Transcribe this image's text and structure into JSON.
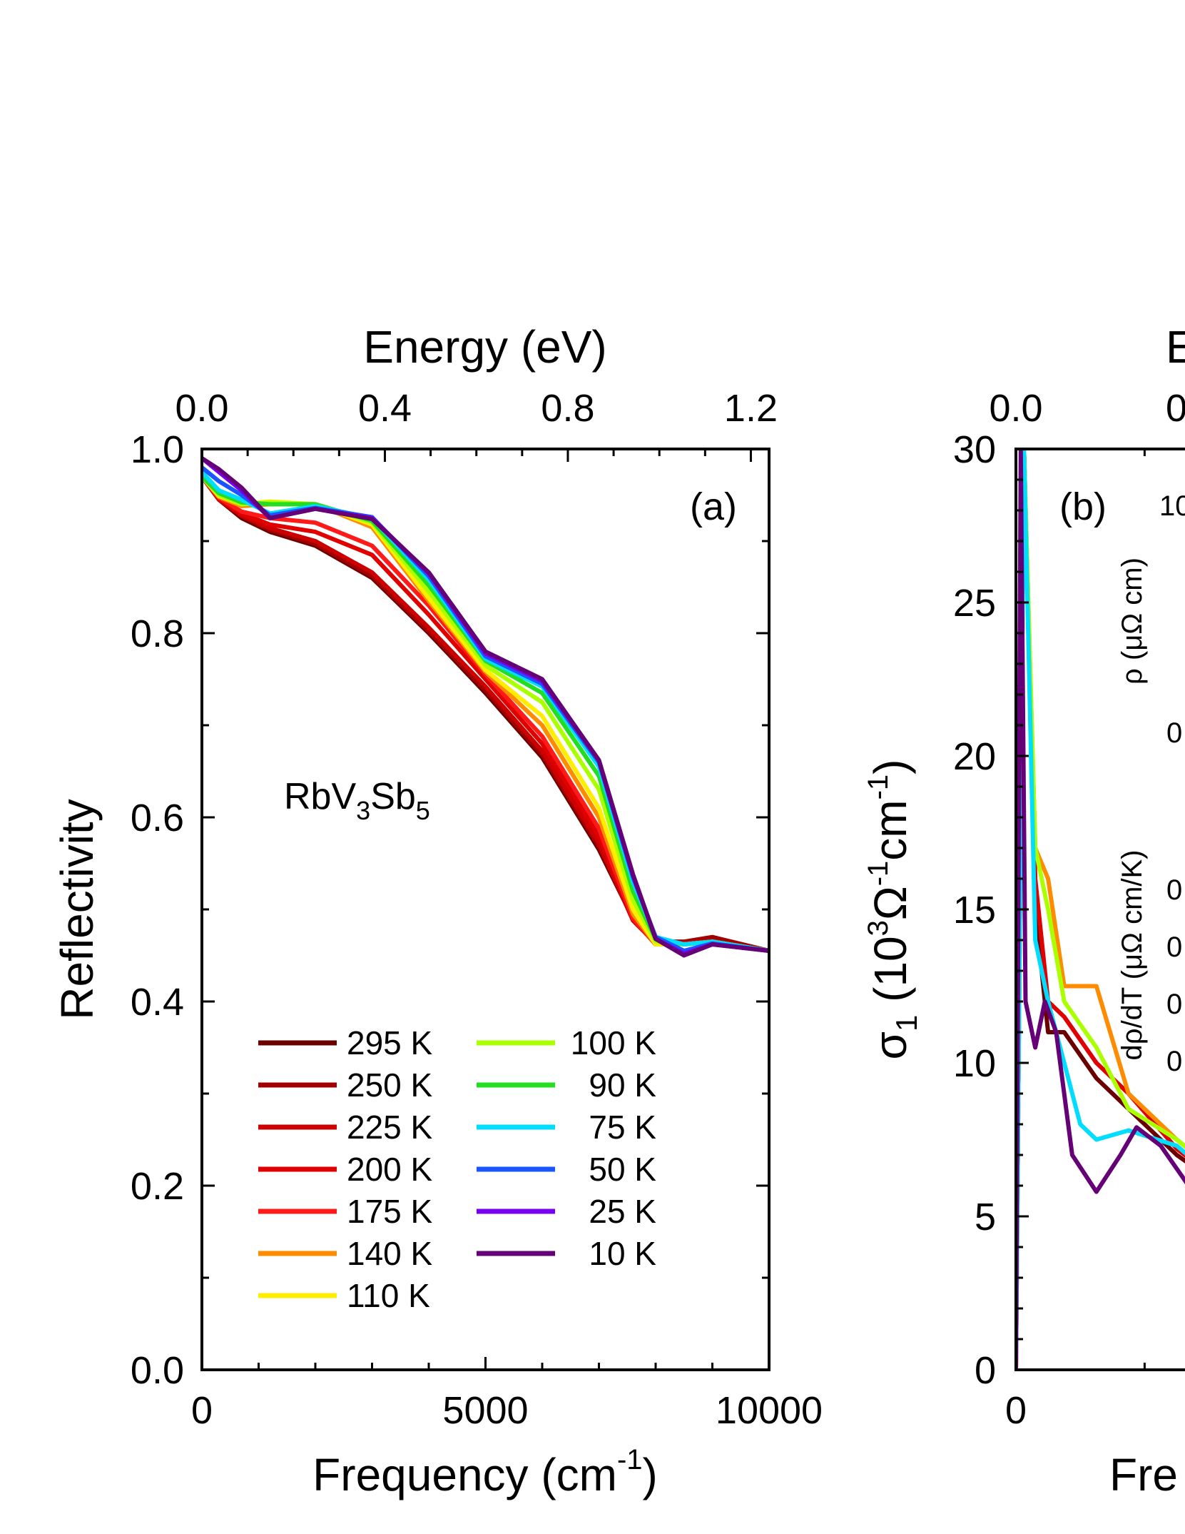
{
  "chart_data": [
    {
      "panel": "(a)",
      "type": "line",
      "xlabel": "Frequency (cm",
      "xlabel_sup": "-1",
      "xlabel_end": ")",
      "ylabel": "Reflectivity",
      "top_xlabel": "Energy (eV)",
      "xlim": [
        0,
        10000
      ],
      "ylim": [
        0.0,
        1.0
      ],
      "xticks": [
        "0",
        "5000",
        "10000"
      ],
      "yticks": [
        "0.0",
        "0.2",
        "0.4",
        "0.6",
        "0.8",
        "1.0"
      ],
      "top_ticks": [
        "0.0",
        "0.4",
        "0.8",
        "1.2"
      ],
      "annotation": {
        "text": "RbV",
        "sub1": "3",
        "mid": "Sb",
        "sub2": "5"
      },
      "legend_placement": "bottom-center",
      "series": [
        {
          "name": "295 K",
          "color": "#6b0000",
          "x": [
            0,
            300,
            700,
            1200,
            2000,
            3000,
            4000,
            5000,
            6000,
            7000,
            7600,
            8000,
            8500,
            9000,
            10000
          ],
          "y": [
            0.97,
            0.945,
            0.925,
            0.91,
            0.895,
            0.86,
            0.8,
            0.735,
            0.665,
            0.565,
            0.49,
            0.465,
            0.465,
            0.468,
            0.455
          ]
        },
        {
          "name": "250 K",
          "color": "#a00000",
          "x": [
            0,
            300,
            700,
            1200,
            2000,
            3000,
            4000,
            5000,
            6000,
            7000,
            7600,
            8000,
            8500,
            9000,
            10000
          ],
          "y": [
            0.97,
            0.945,
            0.927,
            0.912,
            0.897,
            0.862,
            0.802,
            0.738,
            0.668,
            0.568,
            0.49,
            0.465,
            0.465,
            0.47,
            0.455
          ]
        },
        {
          "name": "225 K",
          "color": "#cc0000",
          "x": [
            0,
            300,
            700,
            1200,
            2000,
            3000,
            4000,
            5000,
            6000,
            7000,
            7600,
            8000,
            8500,
            9000,
            10000
          ],
          "y": [
            0.97,
            0.945,
            0.928,
            0.914,
            0.9,
            0.866,
            0.806,
            0.742,
            0.672,
            0.572,
            0.488,
            0.463,
            0.463,
            0.466,
            0.455
          ]
        },
        {
          "name": "200 K",
          "color": "#e00000",
          "x": [
            0,
            300,
            700,
            1200,
            2000,
            3000,
            4000,
            5000,
            6000,
            7000,
            7600,
            8000,
            8500,
            9000,
            10000
          ],
          "y": [
            0.97,
            0.946,
            0.93,
            0.918,
            0.91,
            0.885,
            0.82,
            0.75,
            0.68,
            0.58,
            0.49,
            0.462,
            0.462,
            0.465,
            0.455
          ]
        },
        {
          "name": "175 K",
          "color": "#ff1a1a",
          "x": [
            0,
            300,
            700,
            1200,
            2000,
            3000,
            4000,
            5000,
            6000,
            7000,
            7600,
            8000,
            8500,
            9000,
            10000
          ],
          "y": [
            0.97,
            0.947,
            0.932,
            0.925,
            0.92,
            0.895,
            0.83,
            0.755,
            0.688,
            0.588,
            0.49,
            0.462,
            0.462,
            0.465,
            0.455
          ]
        },
        {
          "name": "140 K",
          "color": "#ff8c00",
          "x": [
            0,
            300,
            700,
            1200,
            2000,
            3000,
            4000,
            5000,
            6000,
            7000,
            7600,
            8000,
            8500,
            9000,
            10000
          ],
          "y": [
            0.97,
            0.948,
            0.938,
            0.94,
            0.94,
            0.915,
            0.835,
            0.758,
            0.7,
            0.6,
            0.495,
            0.462,
            0.462,
            0.465,
            0.455
          ]
        },
        {
          "name": "110 K",
          "color": "#ffee00",
          "x": [
            0,
            300,
            700,
            1200,
            2000,
            3000,
            4000,
            5000,
            6000,
            7000,
            7600,
            8000,
            8500,
            9000,
            10000
          ],
          "y": [
            0.97,
            0.949,
            0.94,
            0.943,
            0.94,
            0.918,
            0.838,
            0.76,
            0.71,
            0.61,
            0.5,
            0.462,
            0.462,
            0.465,
            0.455
          ]
        },
        {
          "name": "100 K",
          "color": "#aaff00",
          "x": [
            0,
            300,
            700,
            1200,
            2000,
            3000,
            4000,
            5000,
            6000,
            7000,
            7600,
            8000,
            8500,
            9000,
            10000
          ],
          "y": [
            0.97,
            0.95,
            0.94,
            0.942,
            0.94,
            0.92,
            0.845,
            0.765,
            0.725,
            0.63,
            0.51,
            0.465,
            0.462,
            0.465,
            0.455
          ]
        },
        {
          "name": "90 K",
          "color": "#22dd22",
          "x": [
            0,
            300,
            700,
            1200,
            2000,
            3000,
            4000,
            5000,
            6000,
            7000,
            7600,
            8000,
            8500,
            9000,
            10000
          ],
          "y": [
            0.97,
            0.952,
            0.942,
            0.94,
            0.94,
            0.922,
            0.852,
            0.77,
            0.735,
            0.645,
            0.52,
            0.468,
            0.462,
            0.465,
            0.455
          ]
        },
        {
          "name": "75 K",
          "color": "#00ddff",
          "x": [
            0,
            300,
            700,
            1200,
            2000,
            3000,
            4000,
            5000,
            6000,
            7000,
            7600,
            8000,
            8500,
            9000,
            10000
          ],
          "y": [
            0.975,
            0.955,
            0.945,
            0.93,
            0.938,
            0.925,
            0.858,
            0.772,
            0.742,
            0.655,
            0.53,
            0.47,
            0.462,
            0.465,
            0.455
          ]
        },
        {
          "name": "50 K",
          "color": "#1a55ff",
          "x": [
            0,
            300,
            700,
            1200,
            2000,
            3000,
            4000,
            5000,
            6000,
            7000,
            7600,
            8000,
            8500,
            9000,
            10000
          ],
          "y": [
            0.98,
            0.965,
            0.95,
            0.928,
            0.936,
            0.926,
            0.862,
            0.775,
            0.745,
            0.66,
            0.535,
            0.47,
            0.455,
            0.463,
            0.455
          ]
        },
        {
          "name": "25 K",
          "color": "#7700ee",
          "x": [
            0,
            300,
            700,
            1200,
            2000,
            3000,
            4000,
            5000,
            6000,
            7000,
            7600,
            8000,
            8500,
            9000,
            10000
          ],
          "y": [
            0.99,
            0.975,
            0.955,
            0.925,
            0.935,
            0.925,
            0.865,
            0.778,
            0.748,
            0.662,
            0.538,
            0.468,
            0.452,
            0.462,
            0.455
          ]
        },
        {
          "name": "10 K",
          "color": "#660077",
          "x": [
            0,
            300,
            700,
            1200,
            2000,
            3000,
            4000,
            5000,
            6000,
            7000,
            7600,
            8000,
            8500,
            9000,
            10000
          ],
          "y": [
            0.99,
            0.978,
            0.958,
            0.925,
            0.935,
            0.924,
            0.866,
            0.78,
            0.75,
            0.662,
            0.538,
            0.468,
            0.45,
            0.462,
            0.455
          ]
        }
      ]
    },
    {
      "panel": "(b)",
      "type": "line",
      "xlabel": "Fre",
      "ylabel_pre": "σ",
      "ylabel_sub": "1",
      "ylabel_main": " (10",
      "ylabel_sup1": "3",
      "ylabel_mid": "Ω",
      "ylabel_sup2": "-1",
      "ylabel_cm": "cm",
      "ylabel_sup3": "-1",
      "ylabel_end": ")",
      "top_xlabel": "E",
      "top_ticks": [
        "0.0",
        "0"
      ],
      "xticks": [
        "0"
      ],
      "yticks": [
        "0",
        "5",
        "10",
        "15",
        "20",
        "25",
        "30"
      ],
      "ylim": [
        0,
        30
      ],
      "xlim_visible": [
        0,
        3100
      ],
      "inset_labels": {
        "rho": "ρ (μΩ cm)",
        "drho": "dρ/dT  (μΩ cm/K)",
        "top_tick": "10",
        "zero_tick": "0",
        "right_ticks": [
          "0",
          "0",
          "0",
          "0"
        ]
      },
      "series": [
        {
          "name": "295 K",
          "color": "#6b0000",
          "x": [
            0,
            50,
            120,
            200,
            300,
            500,
            700,
            1000,
            1400,
            2000,
            2500,
            3100
          ],
          "y": [
            0,
            30,
            15,
            11,
            11,
            9.5,
            8.5,
            7,
            5.5,
            4,
            3.2,
            2.7
          ]
        },
        {
          "name": "200 K",
          "color": "#e00000",
          "x": [
            0,
            50,
            120,
            200,
            300,
            500,
            700,
            1000,
            1400,
            2000,
            2500,
            3100
          ],
          "y": [
            0,
            30,
            16,
            12,
            11.5,
            10,
            9,
            7.2,
            5.6,
            4,
            3,
            2.5
          ]
        },
        {
          "name": "140 K",
          "color": "#ff8c00",
          "x": [
            0,
            50,
            120,
            200,
            300,
            500,
            700,
            1000,
            1400,
            2000,
            2500,
            3100
          ],
          "y": [
            0,
            30,
            17,
            16,
            12.5,
            12.5,
            9,
            7.5,
            5.8,
            4,
            2.8,
            2.3
          ]
        },
        {
          "name": "100 K",
          "color": "#aaff00",
          "x": [
            0,
            50,
            120,
            200,
            300,
            500,
            700,
            1000,
            1400,
            2000,
            2500,
            3100
          ],
          "y": [
            0,
            30,
            17,
            15,
            12,
            10.5,
            8.5,
            7.5,
            5.8,
            3.8,
            2.6,
            2.1
          ]
        },
        {
          "name": "75 K",
          "color": "#00ddff",
          "x": [
            0,
            50,
            120,
            200,
            300,
            400,
            500,
            700,
            1000,
            1400,
            2000,
            2500,
            3100
          ],
          "y": [
            0,
            30,
            14,
            12,
            10,
            8,
            7.5,
            7.8,
            7.3,
            5.5,
            3.5,
            2.4,
            2.0
          ]
        },
        {
          "name": "10 K",
          "color": "#660077",
          "x": [
            0,
            30,
            60,
            120,
            180,
            250,
            350,
            500,
            650,
            750,
            900,
            1100,
            1400,
            2000,
            2500,
            3100
          ],
          "y": [
            0,
            30,
            12,
            10.5,
            12,
            11,
            7,
            5.8,
            7,
            7.9,
            7.3,
            5.8,
            4.8,
            3.2,
            2.3,
            1.9
          ]
        }
      ]
    }
  ]
}
